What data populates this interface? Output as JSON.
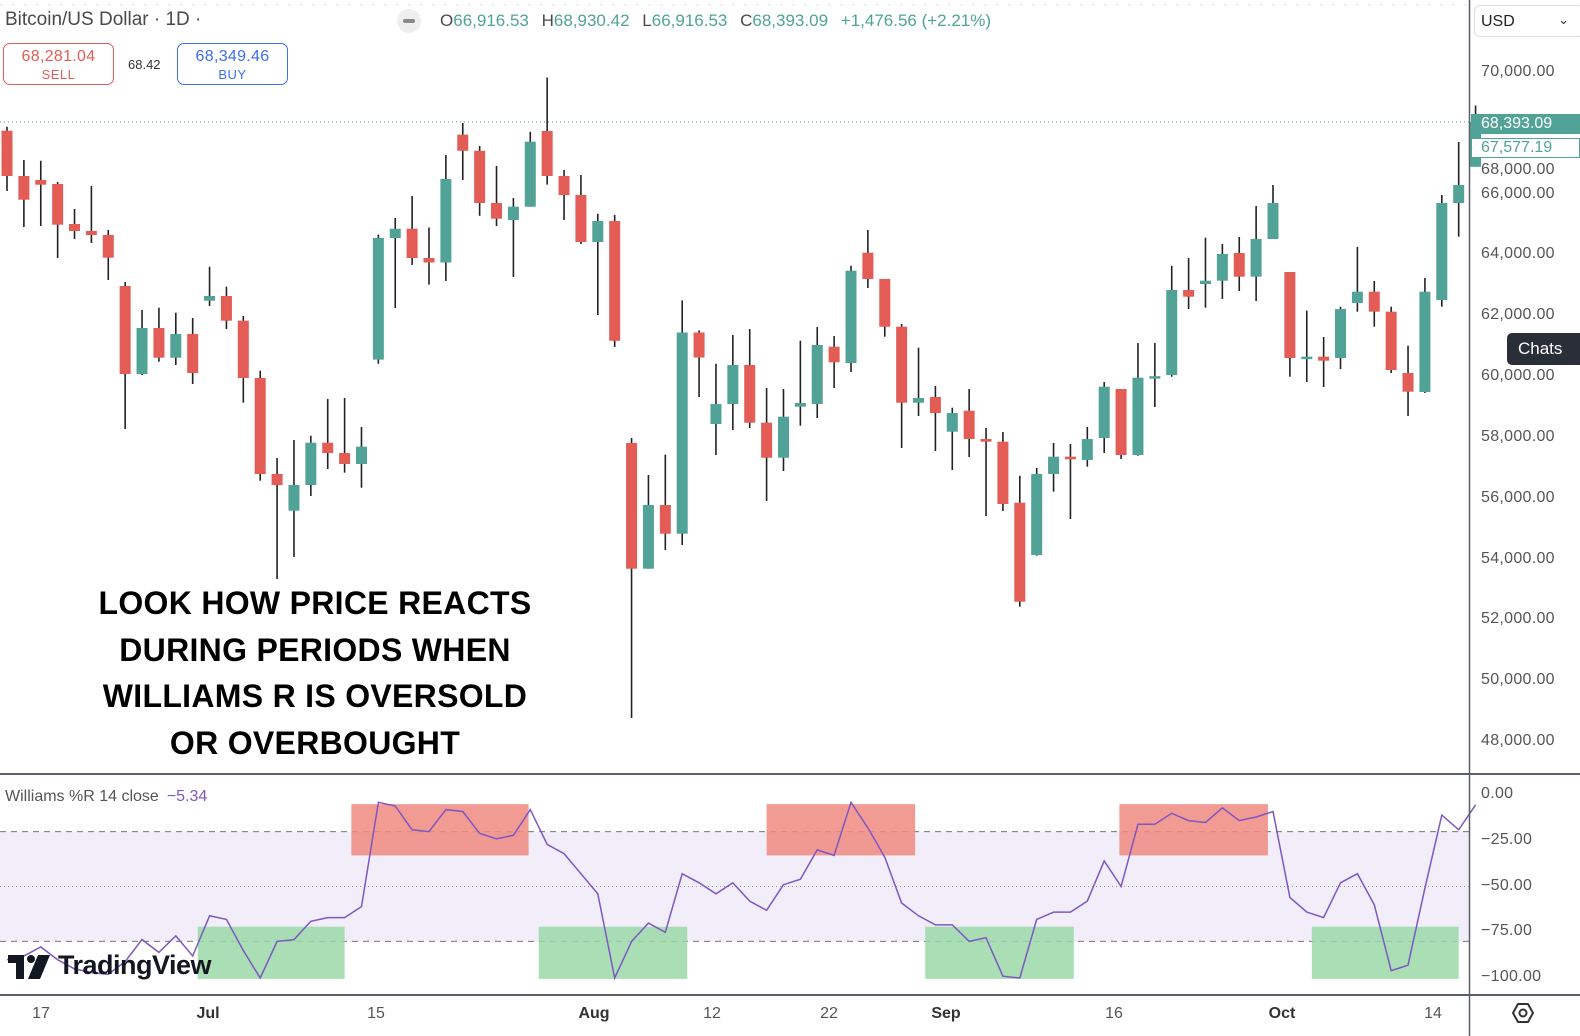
{
  "header": {
    "symbol_title": "Bitcoin/US Dollar · 1D ·",
    "ohlc": {
      "o_label": "O",
      "o": "66,916.53",
      "h_label": "H",
      "h": "68,930.42",
      "l_label": "L",
      "l": "66,916.53",
      "c_label": "C",
      "c": "68,393.09",
      "change": "+1,476.56 (+2.21%)"
    },
    "sell": {
      "price": "68,281.04",
      "label": "SELL"
    },
    "spread": "68.42",
    "buy": {
      "price": "68,349.46",
      "label": "BUY"
    }
  },
  "currency_select": {
    "value": "USD",
    "icon": "chevron-down-icon"
  },
  "price_axis": {
    "ticks": [
      "70,000.00",
      "68,000.00",
      "66,000.00",
      "64,000.00",
      "62,000.00",
      "60,000.00",
      "58,000.00",
      "56,000.00",
      "54,000.00",
      "52,000.00",
      "50,000.00",
      "48,000.00"
    ],
    "last_price_label": "68,393.09",
    "prev_price_label": "67,577.19"
  },
  "chats_button": "Chats",
  "annotation": [
    "LOOK HOW PRICE REACTS",
    "DURING PERIODS WHEN",
    "WILLIAMS R IS OVERSOLD",
    "OR OVERBOUGHT"
  ],
  "indicator": {
    "title": "Williams %R 14 close",
    "value": "−5.34",
    "axis_ticks": [
      "0.00",
      "−25.00",
      "−50.00",
      "−75.00",
      "−100.00"
    ],
    "upper_band": -20,
    "lower_band": -80,
    "color": "#7e57c2"
  },
  "time_axis": [
    {
      "label": "17",
      "month": false
    },
    {
      "label": "Jul",
      "month": true
    },
    {
      "label": "15",
      "month": false
    },
    {
      "label": "Aug",
      "month": true
    },
    {
      "label": "12",
      "month": false
    },
    {
      "label": "22",
      "month": false
    },
    {
      "label": "Sep",
      "month": true
    },
    {
      "label": "16",
      "month": false
    },
    {
      "label": "Oct",
      "month": true
    },
    {
      "label": "14",
      "month": false
    }
  ],
  "logo": "TradingView",
  "colors": {
    "up": "#52a397",
    "down": "#e35d56",
    "wr_line": "#7e57c2",
    "overbought_box": "#ee8a80",
    "oversold_box": "#9bd8a8",
    "band_fill": "#f1edf9"
  },
  "chart_data": [
    {
      "type": "candlestick",
      "title": "Bitcoin/US Dollar · 1D",
      "ylim": [
        47000,
        71000
      ],
      "candles_ohlc": [
        [
          68103,
          68234,
          66120,
          66613
        ],
        [
          66613,
          67139,
          64936,
          65834
        ],
        [
          66481,
          67116,
          64969,
          66327
        ],
        [
          66350,
          66416,
          63916,
          65012
        ],
        [
          65035,
          65528,
          64541,
          64804
        ],
        [
          64804,
          66284,
          64410,
          64673
        ],
        [
          64673,
          64837,
          63193,
          63926
        ],
        [
          62996,
          63127,
          58293,
          60102
        ],
        [
          60102,
          62206,
          60069,
          61615
        ],
        [
          61615,
          62282,
          60506,
          60638
        ],
        [
          60638,
          62118,
          60398,
          61417
        ],
        [
          61417,
          61943,
          59773,
          60135
        ],
        [
          62512,
          63630,
          62338,
          62667
        ],
        [
          62667,
          62973,
          61582,
          61855
        ],
        [
          61855,
          62009,
          59158,
          59970
        ],
        [
          59970,
          60210,
          56593,
          56814
        ],
        [
          56814,
          57340,
          53361,
          56452
        ],
        [
          55607,
          57932,
          54084,
          56452
        ],
        [
          56452,
          58073,
          56090,
          57843
        ],
        [
          57843,
          59280,
          56978,
          57504
        ],
        [
          57504,
          59313,
          56856,
          57142
        ],
        [
          57142,
          58359,
          56363,
          57711
        ],
        [
          60575,
          64686,
          60441,
          64574
        ],
        [
          64574,
          65232,
          62272,
          64880
        ],
        [
          64880,
          65955,
          63686,
          63916
        ],
        [
          63916,
          64919,
          63042,
          63768
        ],
        [
          63768,
          67304,
          63160,
          66514
        ],
        [
          67974,
          68356,
          66481,
          67442
        ],
        [
          67442,
          67599,
          65304,
          65725
        ],
        [
          65725,
          66942,
          64969,
          65209
        ],
        [
          65166,
          65889,
          63292,
          65603
        ],
        [
          65603,
          68070,
          65603,
          67741
        ],
        [
          68093,
          69852,
          66330,
          66613
        ],
        [
          66613,
          66810,
          65166,
          65988
        ],
        [
          65988,
          66646,
          64377,
          64443
        ],
        [
          64443,
          65370,
          62042,
          65133
        ],
        [
          65133,
          65330,
          60990,
          61194
        ],
        [
          57833,
          57997,
          48790,
          53700
        ],
        [
          53700,
          56781,
          53700,
          55794
        ],
        [
          55794,
          57451,
          54314,
          54850
        ],
        [
          54850,
          62522,
          54479,
          61467
        ],
        [
          61467,
          61536,
          59346,
          60644
        ],
        [
          58458,
          60441,
          57438,
          59115
        ],
        [
          59115,
          61384,
          58260,
          60398
        ],
        [
          60398,
          61582,
          58326,
          58500
        ],
        [
          58500,
          59642,
          55926,
          57349
        ],
        [
          57349,
          59609,
          56912,
          58698
        ],
        [
          59027,
          61197,
          58402,
          59148
        ],
        [
          59115,
          61647,
          58655,
          61056
        ],
        [
          61000,
          61352,
          59642,
          60487
        ],
        [
          60464,
          63663,
          60168,
          63499
        ],
        [
          64091,
          64837,
          62930,
          63226
        ],
        [
          63226,
          63226,
          61328,
          61657
        ],
        [
          61657,
          61746,
          57668,
          59158
        ],
        [
          59158,
          60967,
          58721,
          59313
        ],
        [
          59346,
          59707,
          57570,
          58819
        ],
        [
          58205,
          58994,
          56945,
          58819
        ],
        [
          58895,
          59609,
          57373,
          57964
        ],
        [
          57964,
          58326,
          55432,
          57876
        ],
        [
          57876,
          58195,
          55597,
          55827
        ],
        [
          55870,
          56758,
          52450,
          52614
        ],
        [
          54150,
          57011,
          54127,
          56814
        ],
        [
          56814,
          57833,
          56231,
          57383
        ],
        [
          57383,
          57800,
          55334,
          57297
        ],
        [
          57274,
          58359,
          57054,
          57964
        ],
        [
          57997,
          59839,
          57504,
          59684
        ],
        [
          59609,
          59609,
          57307,
          57438
        ],
        [
          57438,
          61121,
          57415,
          59980
        ],
        [
          59980,
          61121,
          59017,
          60030
        ],
        [
          60069,
          63663,
          60013,
          62864
        ],
        [
          62864,
          63916,
          62239,
          62644
        ],
        [
          63061,
          64584,
          62282,
          63170
        ],
        [
          63170,
          64377,
          62568,
          64048
        ],
        [
          64081,
          64607,
          62831,
          63302
        ],
        [
          63302,
          65626,
          62502,
          64541
        ],
        [
          64541,
          66317,
          64541,
          65725
        ],
        [
          63456,
          63456,
          60013,
          60628
        ],
        [
          60628,
          62184,
          59839,
          60672
        ],
        [
          60672,
          61319,
          59674,
          60539
        ],
        [
          60628,
          62315,
          60266,
          62239
        ],
        [
          62437,
          64278,
          62151,
          62808
        ],
        [
          62808,
          63160,
          61657,
          62151
        ],
        [
          62151,
          62315,
          60135,
          60233
        ],
        [
          60135,
          61032,
          58721,
          59520
        ],
        [
          59510,
          63259,
          59477,
          62808
        ],
        [
          62535,
          65988,
          62315,
          65725
        ],
        [
          65725,
          67731,
          64617,
          66317
        ],
        [
          66916.53,
          68930.42,
          66916.53,
          68393.09
        ]
      ],
      "last_price": 68393.09
    },
    {
      "type": "line",
      "title": "Williams %R 14 close",
      "ylim": [
        -105,
        5
      ],
      "values": [
        -90,
        -88,
        -83,
        -90,
        -95,
        -97,
        -98,
        -91,
        -79,
        -86,
        -77,
        -88,
        -66,
        -68,
        -85,
        -100,
        -80,
        -79,
        -69,
        -67,
        -67,
        -61,
        -4,
        -6,
        -19,
        -20,
        -8,
        -9,
        -21,
        -24,
        -22,
        -8,
        -27,
        -32,
        -43,
        -54,
        -100,
        -80,
        -70,
        -75,
        -43,
        -48,
        -54,
        -48,
        -58,
        -63,
        -49,
        -46,
        -30,
        -33,
        -4,
        -18,
        -34,
        -59,
        -66,
        -71,
        -71,
        -80,
        -78,
        -99,
        -100,
        -68,
        -64,
        -64,
        -58,
        -36,
        -50,
        -16,
        -16,
        -10,
        -14,
        -15,
        -7,
        -14,
        -12,
        -9,
        -56,
        -64,
        -67,
        -48,
        -43,
        -60,
        -96,
        -93,
        -51,
        -11,
        -19,
        -5.34
      ],
      "highlights": [
        {
          "kind": "overbought",
          "from_bar": 20.4,
          "to_bar": 30.9,
          "top": -5,
          "bottom": -33
        },
        {
          "kind": "overbought",
          "from_bar": 45.0,
          "to_bar": 53.8,
          "top": -5,
          "bottom": -33
        },
        {
          "kind": "overbought",
          "from_bar": 65.9,
          "to_bar": 74.7,
          "top": -5,
          "bottom": -33
        },
        {
          "kind": "oversold",
          "from_bar": 11.3,
          "to_bar": 20.0,
          "top": -72,
          "bottom": -100.5
        },
        {
          "kind": "oversold",
          "from_bar": 31.5,
          "to_bar": 40.3,
          "top": -72,
          "bottom": -100.5
        },
        {
          "kind": "oversold",
          "from_bar": 54.4,
          "to_bar": 63.2,
          "top": -72,
          "bottom": -100.5
        },
        {
          "kind": "oversold",
          "from_bar": 77.3,
          "to_bar": 86.0,
          "top": -72,
          "bottom": -100.5
        }
      ]
    }
  ]
}
